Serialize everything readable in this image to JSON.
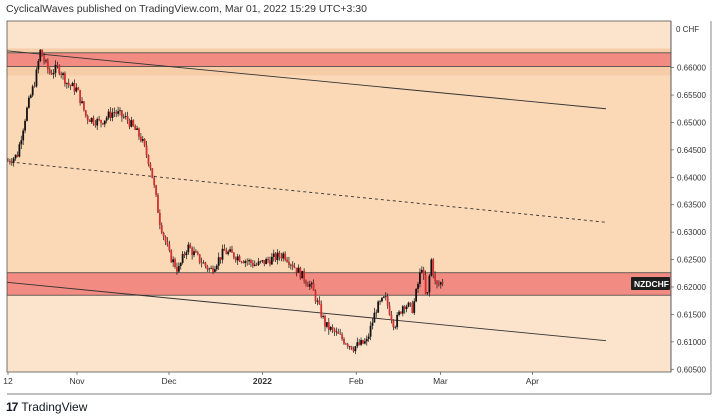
{
  "header": {
    "text": "CyclicalWaves published on TradingView.com, Mar 01, 2022 15:29 UTC+3:30"
  },
  "footer": {
    "logo": "17",
    "brand": "TradingView"
  },
  "chart_data": {
    "type": "candlestick",
    "symbol": "NZDCHF",
    "currency_label": "CHF",
    "currency_tick": "0",
    "yticks": [
      "0.66000",
      "0.65500",
      "0.65000",
      "0.64500",
      "0.64000",
      "0.63500",
      "0.63000",
      "0.62500",
      "0.62000",
      "0.61500",
      "0.61000",
      "0.60500"
    ],
    "ylim": [
      0.6045,
      0.6685
    ],
    "x_labels": [
      {
        "label": "12",
        "t": 0.0,
        "bold": false
      },
      {
        "label": "Nov",
        "t": 0.15,
        "bold": false
      },
      {
        "label": "Dec",
        "t": 0.35,
        "bold": false
      },
      {
        "label": "2022",
        "t": 0.553,
        "bold": true
      },
      {
        "label": "Feb",
        "t": 0.757,
        "bold": false
      },
      {
        "label": "Mar",
        "t": 0.94,
        "bold": false
      },
      {
        "label": "Apr",
        "t": 1.14,
        "bold": false
      }
    ],
    "background_zones": [
      {
        "y1": 0.6685,
        "y2": 0.6635,
        "color": "#fbe3cc"
      },
      {
        "y1": 0.6635,
        "y2": 0.6585,
        "color": "#f7cda8"
      },
      {
        "y1": 0.6585,
        "y2": 0.6225,
        "color": "#fbd9b6"
      },
      {
        "y1": 0.6225,
        "y2": 0.6045,
        "color": "#fbe3cc"
      }
    ],
    "resistance_zone": {
      "top": 0.6627,
      "bottom": 0.6602,
      "color": "#f28b82"
    },
    "support_zone": {
      "top": 0.6226,
      "bottom": 0.6185,
      "color": "#f28b82"
    },
    "trend_lines": [
      {
        "style": "solid",
        "t1": -0.02,
        "y1": 0.6632,
        "t2": 1.3,
        "y2": 0.6525
      },
      {
        "style": "dashed",
        "t1": -0.02,
        "y1": 0.643,
        "t2": 1.3,
        "y2": 0.6318
      },
      {
        "style": "solid",
        "t1": -0.02,
        "y1": 0.621,
        "t2": 1.3,
        "y2": 0.6102
      }
    ],
    "last_price_label": "NZDCHF",
    "price_path": [
      {
        "t": 0.0,
        "p": 0.643
      },
      {
        "t": 0.02,
        "p": 0.644
      },
      {
        "t": 0.04,
        "p": 0.652
      },
      {
        "t": 0.06,
        "p": 0.658
      },
      {
        "t": 0.07,
        "p": 0.663
      },
      {
        "t": 0.09,
        "p": 0.659
      },
      {
        "t": 0.11,
        "p": 0.66
      },
      {
        "t": 0.13,
        "p": 0.657
      },
      {
        "t": 0.15,
        "p": 0.656
      },
      {
        "t": 0.17,
        "p": 0.651
      },
      {
        "t": 0.2,
        "p": 0.65
      },
      {
        "t": 0.23,
        "p": 0.652
      },
      {
        "t": 0.26,
        "p": 0.6505
      },
      {
        "t": 0.29,
        "p": 0.647
      },
      {
        "t": 0.31,
        "p": 0.642
      },
      {
        "t": 0.33,
        "p": 0.632
      },
      {
        "t": 0.35,
        "p": 0.626
      },
      {
        "t": 0.37,
        "p": 0.623
      },
      {
        "t": 0.39,
        "p": 0.6275
      },
      {
        "t": 0.41,
        "p": 0.6255
      },
      {
        "t": 0.44,
        "p": 0.623
      },
      {
        "t": 0.47,
        "p": 0.6265
      },
      {
        "t": 0.5,
        "p": 0.6255
      },
      {
        "t": 0.54,
        "p": 0.624
      },
      {
        "t": 0.57,
        "p": 0.625
      },
      {
        "t": 0.6,
        "p": 0.626
      },
      {
        "t": 0.63,
        "p": 0.623
      },
      {
        "t": 0.66,
        "p": 0.62
      },
      {
        "t": 0.69,
        "p": 0.613
      },
      {
        "t": 0.72,
        "p": 0.611
      },
      {
        "t": 0.75,
        "p": 0.609
      },
      {
        "t": 0.78,
        "p": 0.61
      },
      {
        "t": 0.8,
        "p": 0.616
      },
      {
        "t": 0.82,
        "p": 0.618
      },
      {
        "t": 0.84,
        "p": 0.613
      },
      {
        "t": 0.86,
        "p": 0.617
      },
      {
        "t": 0.88,
        "p": 0.616
      },
      {
        "t": 0.9,
        "p": 0.624
      },
      {
        "t": 0.91,
        "p": 0.617
      },
      {
        "t": 0.92,
        "p": 0.625
      },
      {
        "t": 0.93,
        "p": 0.62
      },
      {
        "t": 0.945,
        "p": 0.621
      }
    ]
  }
}
